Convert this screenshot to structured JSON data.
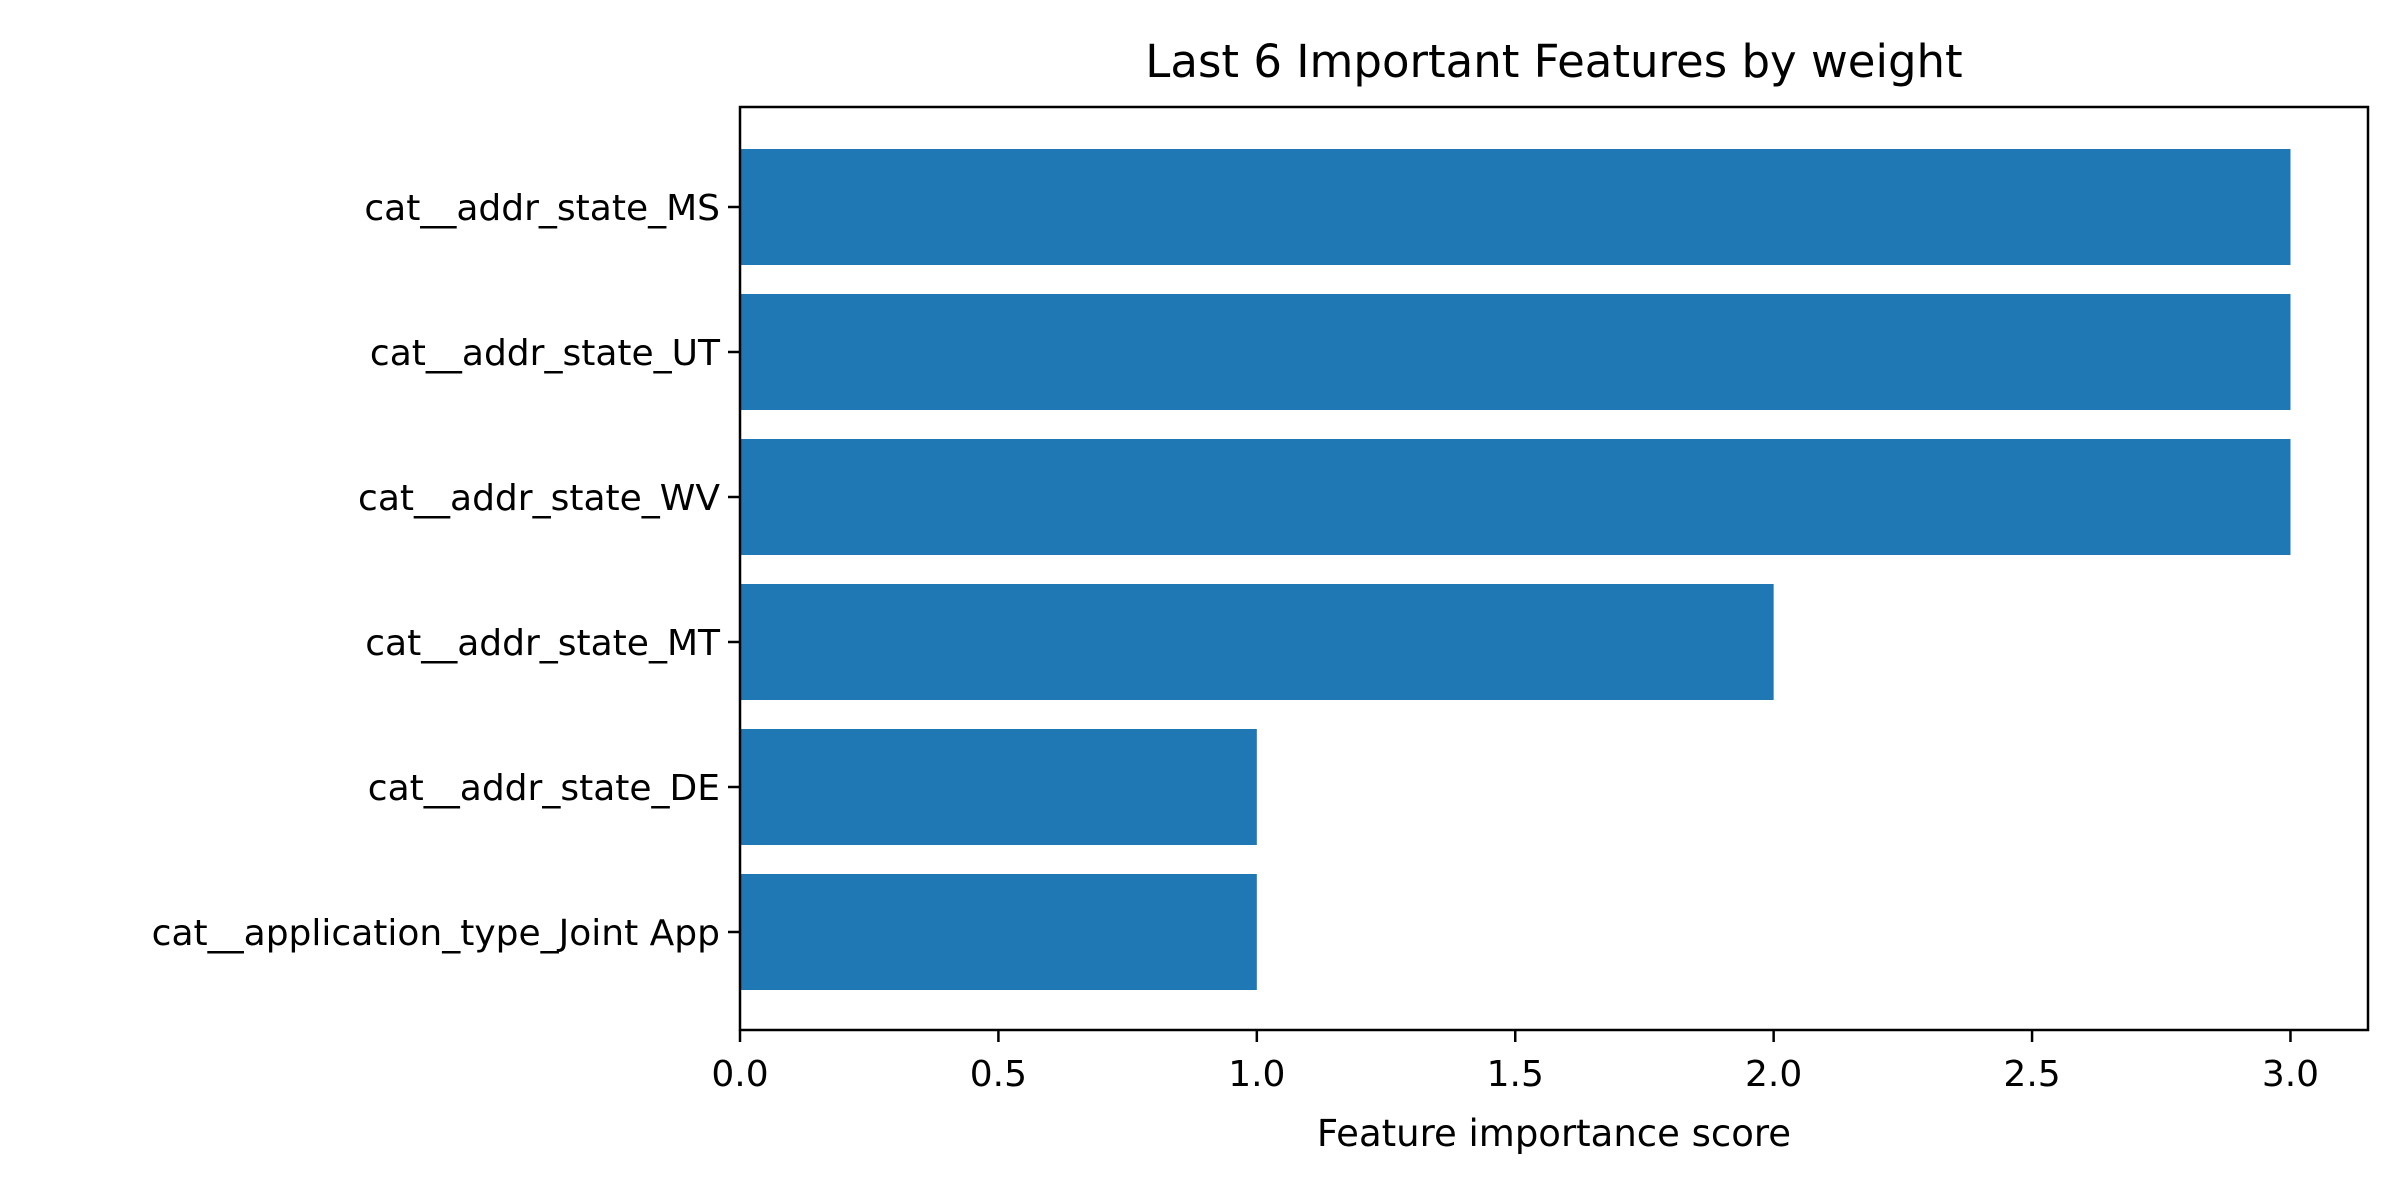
{
  "chart_data": {
    "type": "bar",
    "orientation": "horizontal",
    "title": "Last 6 Important Features by weight",
    "xlabel": "Feature importance score",
    "ylabel": "",
    "categories": [
      "cat__addr_state_MS",
      "cat__addr_state_UT",
      "cat__addr_state_WV",
      "cat__addr_state_MT",
      "cat__addr_state_DE",
      "cat__application_type_Joint App"
    ],
    "values": [
      3,
      3,
      3,
      2,
      1,
      1
    ],
    "xlim": [
      0,
      3.15
    ],
    "xticks": [
      "0.0",
      "0.5",
      "1.0",
      "1.5",
      "2.0",
      "2.5",
      "3.0"
    ],
    "grid": false,
    "bar_color": "#1f77b4"
  }
}
